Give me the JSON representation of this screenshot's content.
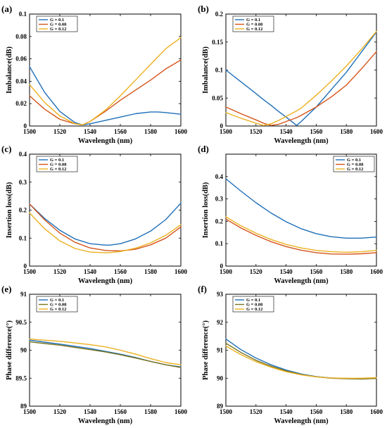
{
  "colors": {
    "blue": "#1f6fb8",
    "orange": "#d5541a",
    "yellow": "#ecb01f",
    "olive": "#7b7420"
  },
  "chart_data": [
    {
      "type": "line",
      "panel_label": "(a)",
      "xlabel": "Wavelength (nm)",
      "ylabel": "Imbalance(dB)",
      "xlim": [
        1500,
        1600
      ],
      "ylim": [
        0,
        0.1
      ],
      "xticks": [
        "1500",
        "1520",
        "1540",
        "1560",
        "1580",
        "1600"
      ],
      "yticks": [
        "0",
        "0.02",
        "0.04",
        "0.06",
        "0.08",
        "0.1"
      ],
      "legend_position": "top-left",
      "grid": false,
      "x": [
        1500,
        1510,
        1520,
        1530,
        1535,
        1540,
        1550,
        1560,
        1570,
        1580,
        1585,
        1590,
        1600
      ],
      "series": [
        {
          "name": "G = 0.1",
          "color": "#1f6fb8",
          "values": [
            0.053,
            0.03,
            0.013,
            0.003,
            0.001,
            0.002,
            0.005,
            0.008,
            0.011,
            0.0125,
            0.0125,
            0.012,
            0.0105
          ]
        },
        {
          "name": "G = 0.08",
          "color": "#d5541a",
          "values": [
            0.027,
            0.015,
            0.006,
            0.002,
            0.001,
            0.004,
            0.013,
            0.023,
            0.032,
            0.041,
            0.046,
            0.051,
            0.059
          ]
        },
        {
          "name": "G = 0.12",
          "color": "#ecb01f",
          "values": [
            0.037,
            0.021,
            0.009,
            0.002,
            0.001,
            0.004,
            0.014,
            0.027,
            0.041,
            0.055,
            0.062,
            0.069,
            0.079
          ]
        }
      ]
    },
    {
      "type": "line",
      "panel_label": "(b)",
      "xlabel": "Wavelength (nm)",
      "ylabel": "Imbalance(dB)",
      "xlim": [
        1500,
        1600
      ],
      "ylim": [
        0,
        0.2
      ],
      "xticks": [
        "1500",
        "1520",
        "1540",
        "1560",
        "1580",
        "1600"
      ],
      "yticks": [
        "0",
        "0.05",
        "0.1",
        "0.15",
        "0.2"
      ],
      "legend_position": "top-left",
      "grid": false,
      "x": [
        1500,
        1510,
        1520,
        1525,
        1530,
        1535,
        1540,
        1547,
        1550,
        1560,
        1570,
        1580,
        1590,
        1600
      ],
      "series": [
        {
          "name": "G = 0.1",
          "color": "#1f6fb8",
          "values": [
            0.1,
            0.079,
            0.058,
            0.047,
            0.037,
            0.026,
            0.016,
            0.001,
            0.008,
            0.034,
            0.065,
            0.096,
            0.132,
            0.168
          ]
        },
        {
          "name": "G = 0.08",
          "color": "#d5541a",
          "values": [
            0.034,
            0.022,
            0.011,
            0.005,
            0.001,
            0.003,
            0.008,
            0.015,
            0.019,
            0.034,
            0.052,
            0.073,
            0.102,
            0.133
          ]
        },
        {
          "name": "G = 0.12",
          "color": "#ecb01f",
          "values": [
            0.024,
            0.014,
            0.005,
            0.001,
            0.004,
            0.01,
            0.017,
            0.027,
            0.032,
            0.055,
            0.08,
            0.107,
            0.137,
            0.169
          ]
        }
      ]
    },
    {
      "type": "line",
      "panel_label": "(c)",
      "xlabel": "Wavelength (nm)",
      "ylabel": "Insertion loss(dB)",
      "xlim": [
        1500,
        1600
      ],
      "ylim": [
        0,
        0.4
      ],
      "xticks": [
        "1500",
        "1520",
        "1540",
        "1560",
        "1580",
        "1600"
      ],
      "yticks": [
        "0",
        "0.1",
        "0.2",
        "0.3",
        "0.4"
      ],
      "legend_position": "top-left",
      "grid": false,
      "x": [
        1500,
        1510,
        1520,
        1530,
        1540,
        1550,
        1553,
        1560,
        1570,
        1580,
        1590,
        1600
      ],
      "series": [
        {
          "name": "G = 0.1",
          "color": "#1f6fb8",
          "values": [
            0.222,
            0.17,
            0.128,
            0.097,
            0.08,
            0.075,
            0.075,
            0.08,
            0.097,
            0.125,
            0.166,
            0.225
          ]
        },
        {
          "name": "G = 0.08",
          "color": "#d5541a",
          "values": [
            0.222,
            0.165,
            0.118,
            0.085,
            0.065,
            0.056,
            0.055,
            0.054,
            0.06,
            0.076,
            0.1,
            0.14
          ]
        },
        {
          "name": "G = 0.12",
          "color": "#ecb01f",
          "values": [
            0.19,
            0.133,
            0.09,
            0.063,
            0.05,
            0.048,
            0.048,
            0.052,
            0.064,
            0.083,
            0.11,
            0.148
          ]
        }
      ]
    },
    {
      "type": "line",
      "panel_label": "(d)",
      "xlabel": "Wavelength (nm)",
      "ylabel": "Insertion loss(dB)",
      "xlim": [
        1500,
        1600
      ],
      "ylim": [
        0,
        0.5
      ],
      "xticks": [
        "1500",
        "1520",
        "1540",
        "1560",
        "1580",
        "1600"
      ],
      "yticks": [
        "0",
        "0.1",
        "0.2",
        "0.3",
        "0.4"
      ],
      "legend_position": "top-right",
      "grid": false,
      "x": [
        1500,
        1510,
        1520,
        1530,
        1540,
        1550,
        1560,
        1570,
        1580,
        1590,
        1600
      ],
      "series": [
        {
          "name": "G = 0.1",
          "color": "#1f6fb8",
          "values": [
            0.39,
            0.335,
            0.283,
            0.237,
            0.198,
            0.167,
            0.145,
            0.131,
            0.125,
            0.125,
            0.13
          ]
        },
        {
          "name": "G = 0.08",
          "color": "#d5541a",
          "values": [
            0.21,
            0.17,
            0.137,
            0.109,
            0.087,
            0.071,
            0.06,
            0.054,
            0.053,
            0.055,
            0.06
          ]
        },
        {
          "name": "G = 0.12",
          "color": "#ecb01f",
          "values": [
            0.22,
            0.18,
            0.147,
            0.119,
            0.097,
            0.081,
            0.07,
            0.064,
            0.062,
            0.064,
            0.07
          ]
        }
      ]
    },
    {
      "type": "line",
      "panel_label": "(e)",
      "xlabel": "Wavelength (nm)",
      "ylabel": "Phase difference(°)",
      "xlim": [
        1500,
        1600
      ],
      "ylim": [
        89,
        91
      ],
      "xticks": [
        "1500",
        "1520",
        "1540",
        "1560",
        "1580",
        "1600"
      ],
      "yticks": [
        "89",
        "89.5",
        "90",
        "90.5",
        "91"
      ],
      "legend_position": "top-left",
      "grid": false,
      "x": [
        1500,
        1510,
        1520,
        1530,
        1540,
        1550,
        1560,
        1570,
        1580,
        1590,
        1600
      ],
      "series": [
        {
          "name": "G = 0.1",
          "color": "#1f6fb8",
          "values": [
            90.18,
            90.145,
            90.11,
            90.07,
            90.03,
            89.98,
            89.93,
            89.87,
            89.8,
            89.74,
            89.7
          ]
        },
        {
          "name": "G = 0.08",
          "color": "#7b7420",
          "values": [
            90.15,
            90.12,
            90.09,
            90.05,
            90.01,
            89.97,
            89.92,
            89.86,
            89.8,
            89.74,
            89.69
          ]
        },
        {
          "name": "G = 0.12",
          "color": "#ecb01f",
          "values": [
            90.2,
            90.18,
            90.16,
            90.13,
            90.1,
            90.06,
            90.0,
            89.93,
            89.85,
            89.78,
            89.74
          ]
        }
      ]
    },
    {
      "type": "line",
      "panel_label": "(f)",
      "xlabel": "Wavelength (nm)",
      "ylabel": "Phase difference(°)",
      "xlim": [
        1500,
        1600
      ],
      "ylim": [
        89,
        93
      ],
      "xticks": [
        "1500",
        "1520",
        "1540",
        "1560",
        "1580",
        "1600"
      ],
      "yticks": [
        "89",
        "90",
        "91",
        "92",
        "93"
      ],
      "legend_position": "top-left",
      "grid": false,
      "x": [
        1500,
        1510,
        1520,
        1530,
        1540,
        1550,
        1560,
        1570,
        1580,
        1590,
        1600
      ],
      "series": [
        {
          "name": "G = 0.1",
          "color": "#1f6fb8",
          "values": [
            91.4,
            91.02,
            90.72,
            90.48,
            90.29,
            90.15,
            90.06,
            90.01,
            89.99,
            89.98,
            89.99
          ]
        },
        {
          "name": "G = 0.08",
          "color": "#7b7420",
          "values": [
            91.25,
            90.92,
            90.64,
            90.43,
            90.26,
            90.13,
            90.05,
            90.0,
            89.98,
            89.97,
            89.99
          ]
        },
        {
          "name": "G = 0.12",
          "color": "#ecb01f",
          "values": [
            91.15,
            90.84,
            90.59,
            90.39,
            90.23,
            90.12,
            90.05,
            90.01,
            90.0,
            90.0,
            90.02
          ]
        }
      ]
    }
  ]
}
